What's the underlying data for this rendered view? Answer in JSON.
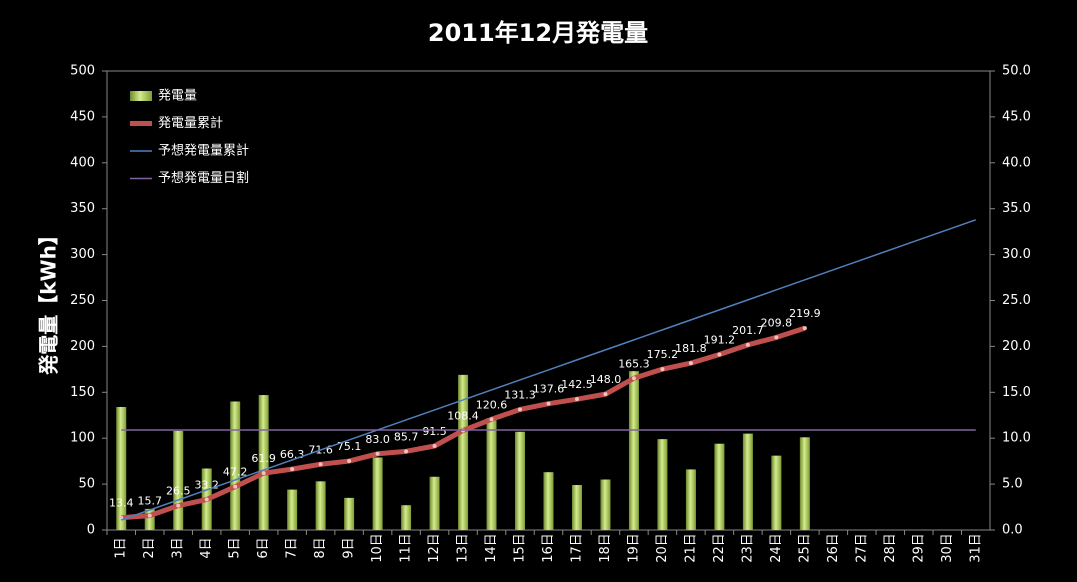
{
  "chart_data": {
    "type": "combo",
    "title": "2011年12月発電量",
    "ylabel": "発電量【kWh】",
    "categories": [
      "1日",
      "2日",
      "3日",
      "4日",
      "5日",
      "6日",
      "7日",
      "8日",
      "9日",
      "10日",
      "11日",
      "12日",
      "13日",
      "14日",
      "15日",
      "16日",
      "17日",
      "18日",
      "19日",
      "20日",
      "21日",
      "22日",
      "23日",
      "24日",
      "25日",
      "26日",
      "27日",
      "28日",
      "29日",
      "30日",
      "31日"
    ],
    "ylim": [
      0,
      500
    ],
    "yticks": [
      0,
      50,
      100,
      150,
      200,
      250,
      300,
      350,
      400,
      450,
      500
    ],
    "y2lim": [
      0,
      50
    ],
    "y2ticks": [
      {
        "value": 0,
        "label": "0.0"
      },
      {
        "value": 5,
        "label": "5.0"
      },
      {
        "value": 10,
        "label": "10.0"
      },
      {
        "value": 15,
        "label": "15.0"
      },
      {
        "value": 20,
        "label": "20.0"
      },
      {
        "value": 25,
        "label": "25.0"
      },
      {
        "value": 30,
        "label": "30.0"
      },
      {
        "value": 35,
        "label": "35.0"
      },
      {
        "value": 40,
        "label": "40.0"
      },
      {
        "value": 45,
        "label": "45.0"
      },
      {
        "value": 50,
        "label": "50.0"
      }
    ],
    "legend": "top-left",
    "series": [
      {
        "name": "発電量",
        "type": "bar",
        "axis": "y2",
        "color": "#9bbb59",
        "values": [
          13.4,
          2.3,
          10.8,
          6.7,
          14.0,
          14.7,
          4.4,
          5.3,
          3.5,
          7.9,
          2.7,
          5.8,
          16.9,
          12.2,
          10.7,
          6.3,
          4.9,
          5.5,
          17.3,
          9.9,
          6.6,
          9.4,
          10.5,
          8.1,
          10.1,
          null,
          null,
          null,
          null,
          null,
          null
        ]
      },
      {
        "name": "発電量累計",
        "type": "line",
        "color": "#c0504d",
        "width": 5,
        "markers": true,
        "values": [
          13.4,
          15.7,
          26.5,
          33.2,
          47.2,
          61.9,
          66.3,
          71.6,
          75.1,
          83.0,
          85.7,
          91.5,
          108.4,
          120.6,
          131.3,
          137.6,
          142.5,
          148.0,
          165.3,
          175.2,
          181.8,
          191.2,
          201.7,
          209.8,
          219.9,
          null,
          null,
          null,
          null,
          null,
          null
        ],
        "value_labels": [
          "13.4",
          "15.7",
          "26.5",
          "33.2",
          "47.2",
          "61.9",
          "66.3",
          "71.6",
          "75.1",
          "83.0",
          "85.7",
          "91.5",
          "108.4",
          "120.6",
          "131.3",
          "137.6",
          "142.5",
          "148.0",
          "165.3",
          "175.2",
          "181.8",
          "191.2",
          "201.7",
          "209.8",
          "219.9",
          null,
          null,
          null,
          null,
          null,
          null
        ]
      },
      {
        "name": "予想発電量累計",
        "type": "line",
        "color": "#4f81bd",
        "width": 1.5,
        "values": [
          10.9,
          21.8,
          32.7,
          43.6,
          54.5,
          65.4,
          76.3,
          87.2,
          98.1,
          109.0,
          119.9,
          130.8,
          141.7,
          152.6,
          163.5,
          174.4,
          185.3,
          196.2,
          207.1,
          218.0,
          228.9,
          239.8,
          250.7,
          261.6,
          272.5,
          283.4,
          294.3,
          305.2,
          316.1,
          327.0,
          337.9
        ]
      },
      {
        "name": "予想発電量日割",
        "type": "line",
        "axis": "y2",
        "color": "#8064a2",
        "width": 1.5,
        "values": [
          10.9,
          10.9,
          10.9,
          10.9,
          10.9,
          10.9,
          10.9,
          10.9,
          10.9,
          10.9,
          10.9,
          10.9,
          10.9,
          10.9,
          10.9,
          10.9,
          10.9,
          10.9,
          10.9,
          10.9,
          10.9,
          10.9,
          10.9,
          10.9,
          10.9,
          10.9,
          10.9,
          10.9,
          10.9,
          10.9,
          10.9
        ]
      }
    ]
  }
}
